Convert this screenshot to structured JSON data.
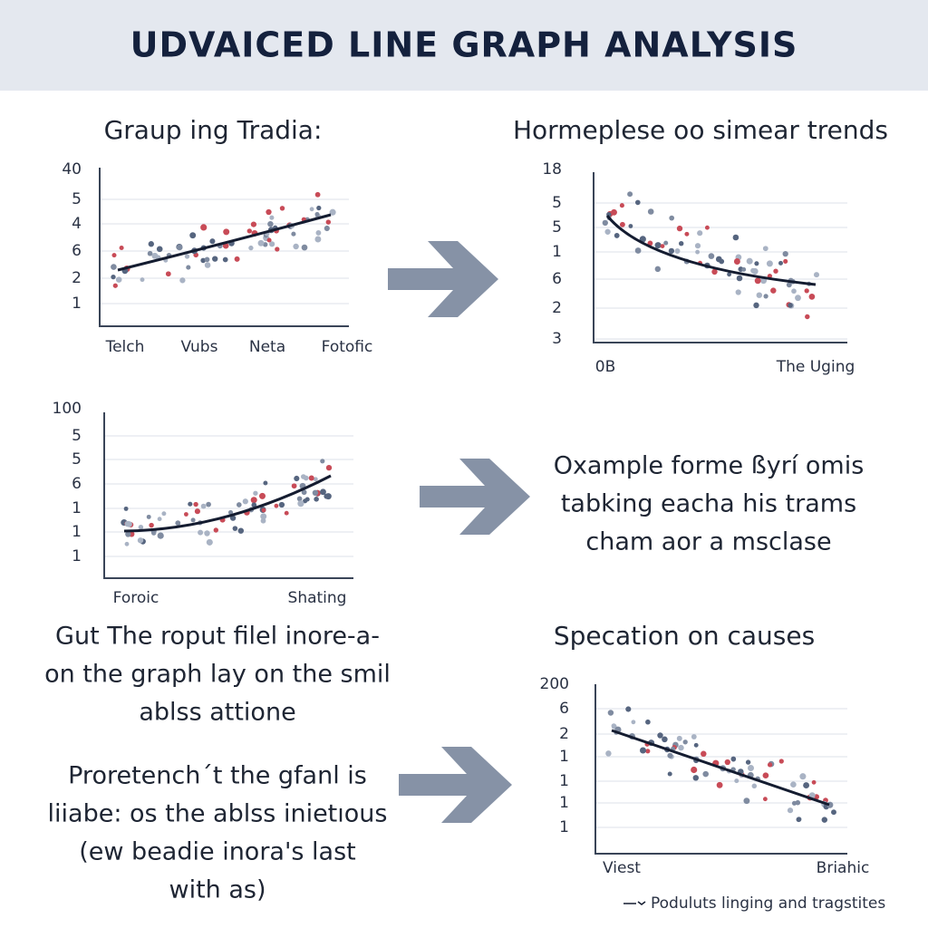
{
  "header": {
    "title": "UDVAICED LINE GRAPH ANALYSIS"
  },
  "panels": [
    {
      "title": "Graup ing Tradia:",
      "y_labels": [
        "40",
        "5",
        "4",
        "6",
        "2",
        "1"
      ],
      "x_labels": [
        "Telch",
        "Vubs",
        "Neta",
        "Fotofic"
      ]
    },
    {
      "title": "Hormeplese oo simear trends",
      "y_labels": [
        "18",
        "5",
        "5",
        "1",
        "6",
        "2",
        "3"
      ],
      "x_labels": [
        "0B",
        "The Uging"
      ]
    },
    {
      "y_labels": [
        "100",
        "5",
        "5",
        "6",
        "1",
        "1",
        "1"
      ],
      "x_labels": [
        "Foroic",
        "Shating"
      ]
    },
    {
      "title": "Specation on causes",
      "y_labels": [
        "200",
        "6",
        "2",
        "1",
        "1",
        "1",
        "1"
      ],
      "x_labels": [
        "Viest",
        "Briahic"
      ],
      "legend": "Poduluts linging and tragstites"
    }
  ],
  "texts": {
    "left_top": [
      "Gut The roput filel inore-a-",
      "on the graph lay on the smil",
      "ablss attione"
    ],
    "middle_right": [
      "Oxample forme ßyrí omis",
      "tabking eacha his trams",
      "cham aor a msclase"
    ],
    "left_bottom": [
      "Proretench´t the gfanl is",
      "liiabe: os the ablss inietıous",
      "(ew beadie inora's last",
      "with as)"
    ]
  }
}
